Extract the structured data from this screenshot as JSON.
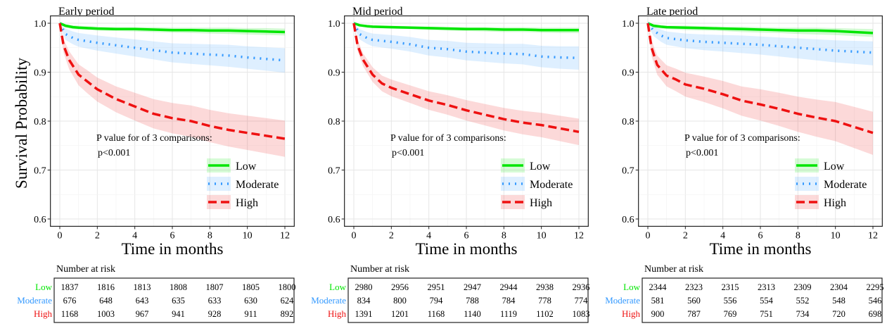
{
  "figure": {
    "ylabel": "Survival Probability",
    "xlabel": "Time in months",
    "risk_title": "Number at risk",
    "annotation_line1": "P value for of 3 comparisons:",
    "annotation_line2": "p<0.001"
  },
  "colors": {
    "Low": "#00e600",
    "Moderate": "#3399ff",
    "High": "#ee1111"
  },
  "chart_data": [
    {
      "type": "line",
      "title": "Early period",
      "xlabel": "Time in months",
      "ylabel": "Survival Probability",
      "xlim": [
        0,
        12
      ],
      "ylim": [
        0.6,
        1.0
      ],
      "xticks": [
        0,
        2,
        4,
        6,
        8,
        10,
        12
      ],
      "yticks": [
        0.6,
        0.7,
        0.8,
        0.9,
        1.0
      ],
      "legend": [
        "Low",
        "Moderate",
        "High"
      ],
      "annotation": [
        "P value for of 3 comparisons:",
        "p<0.001"
      ],
      "series": [
        {
          "name": "Low",
          "x": [
            0,
            0.3,
            0.7,
            1,
            2,
            3,
            4,
            5,
            6,
            7,
            8,
            9,
            10,
            11,
            12
          ],
          "y": [
            1.0,
            0.995,
            0.992,
            0.991,
            0.989,
            0.988,
            0.988,
            0.987,
            0.986,
            0.986,
            0.985,
            0.985,
            0.984,
            0.983,
            0.982
          ],
          "lower": [
            0.998,
            0.991,
            0.988,
            0.987,
            0.985,
            0.984,
            0.983,
            0.982,
            0.981,
            0.98,
            0.979,
            0.978,
            0.977,
            0.976,
            0.975
          ],
          "upper": [
            1.0,
            0.998,
            0.996,
            0.995,
            0.993,
            0.992,
            0.992,
            0.992,
            0.991,
            0.991,
            0.991,
            0.991,
            0.99,
            0.99,
            0.989
          ]
        },
        {
          "name": "Moderate",
          "x": [
            0,
            0.3,
            0.7,
            1,
            2,
            3,
            4,
            5,
            6,
            7,
            8,
            9,
            10,
            11,
            12
          ],
          "y": [
            1.0,
            0.978,
            0.97,
            0.966,
            0.96,
            0.955,
            0.95,
            0.945,
            0.94,
            0.938,
            0.936,
            0.934,
            0.93,
            0.927,
            0.924
          ],
          "lower": [
            0.995,
            0.966,
            0.957,
            0.952,
            0.944,
            0.938,
            0.932,
            0.926,
            0.92,
            0.917,
            0.914,
            0.911,
            0.907,
            0.903,
            0.899
          ],
          "upper": [
            1.0,
            0.989,
            0.983,
            0.98,
            0.975,
            0.971,
            0.967,
            0.963,
            0.959,
            0.958,
            0.957,
            0.956,
            0.953,
            0.951,
            0.949
          ]
        },
        {
          "name": "High",
          "x": [
            0,
            0.2,
            0.5,
            1,
            1.5,
            2,
            3,
            4,
            5,
            6,
            7,
            8,
            9,
            10,
            11,
            12
          ],
          "y": [
            1.0,
            0.955,
            0.925,
            0.895,
            0.88,
            0.865,
            0.845,
            0.83,
            0.815,
            0.806,
            0.8,
            0.79,
            0.782,
            0.776,
            0.77,
            0.764
          ],
          "lower": [
            0.995,
            0.94,
            0.906,
            0.873,
            0.856,
            0.84,
            0.818,
            0.801,
            0.785,
            0.775,
            0.768,
            0.757,
            0.748,
            0.741,
            0.734,
            0.727
          ],
          "upper": [
            1.0,
            0.968,
            0.943,
            0.916,
            0.903,
            0.889,
            0.871,
            0.858,
            0.845,
            0.837,
            0.832,
            0.823,
            0.816,
            0.811,
            0.806,
            0.801
          ]
        }
      ],
      "risk_table": {
        "times": [
          0,
          2,
          4,
          6,
          8,
          10,
          12
        ],
        "rows": [
          {
            "name": "Low",
            "values": [
              "1837",
              "1816",
              "1813",
              "1808",
              "1807",
              "1805",
              "1800"
            ]
          },
          {
            "name": "Moderate",
            "values": [
              "676",
              "648",
              "643",
              "635",
              "633",
              "630",
              "624"
            ]
          },
          {
            "name": "High",
            "values": [
              "1168",
              "1003",
              "967",
              "941",
              "928",
              "911",
              "892"
            ]
          }
        ]
      }
    },
    {
      "type": "line",
      "title": "Mid period",
      "xlabel": "Time in months",
      "ylabel": "Survival Probability",
      "xlim": [
        0,
        12
      ],
      "ylim": [
        0.6,
        1.0
      ],
      "xticks": [
        0,
        2,
        4,
        6,
        8,
        10,
        12
      ],
      "yticks": [
        0.6,
        0.7,
        0.8,
        0.9,
        1.0
      ],
      "legend": [
        "Low",
        "Moderate",
        "High"
      ],
      "annotation": [
        "P value for of 3 comparisons:",
        "p<0.001"
      ],
      "series": [
        {
          "name": "Low",
          "x": [
            0,
            0.3,
            0.7,
            1,
            2,
            3,
            4,
            5,
            6,
            7,
            8,
            9,
            10,
            11,
            12
          ],
          "y": [
            1.0,
            0.996,
            0.994,
            0.993,
            0.992,
            0.991,
            0.99,
            0.989,
            0.988,
            0.988,
            0.987,
            0.987,
            0.986,
            0.986,
            0.986
          ],
          "lower": [
            0.998,
            0.993,
            0.991,
            0.99,
            0.989,
            0.988,
            0.986,
            0.985,
            0.984,
            0.983,
            0.982,
            0.982,
            0.981,
            0.98,
            0.98
          ],
          "upper": [
            1.0,
            0.998,
            0.997,
            0.996,
            0.995,
            0.994,
            0.993,
            0.993,
            0.992,
            0.992,
            0.992,
            0.992,
            0.991,
            0.991,
            0.991
          ]
        },
        {
          "name": "Moderate",
          "x": [
            0,
            0.3,
            0.7,
            1,
            2,
            3,
            4,
            5,
            6,
            7,
            8,
            9,
            10,
            11,
            12
          ],
          "y": [
            1.0,
            0.978,
            0.97,
            0.966,
            0.962,
            0.957,
            0.95,
            0.947,
            0.942,
            0.94,
            0.938,
            0.937,
            0.932,
            0.93,
            0.929
          ],
          "lower": [
            0.995,
            0.967,
            0.958,
            0.953,
            0.948,
            0.942,
            0.934,
            0.93,
            0.924,
            0.921,
            0.918,
            0.916,
            0.91,
            0.907,
            0.905
          ],
          "upper": [
            1.0,
            0.988,
            0.982,
            0.979,
            0.976,
            0.972,
            0.966,
            0.964,
            0.96,
            0.959,
            0.958,
            0.958,
            0.954,
            0.953,
            0.953
          ]
        },
        {
          "name": "High",
          "x": [
            0,
            0.2,
            0.5,
            1,
            1.5,
            2,
            3,
            4,
            5,
            6,
            7,
            8,
            9,
            10,
            11,
            12
          ],
          "y": [
            1.0,
            0.955,
            0.925,
            0.895,
            0.877,
            0.868,
            0.855,
            0.842,
            0.833,
            0.822,
            0.813,
            0.804,
            0.797,
            0.792,
            0.785,
            0.778
          ],
          "lower": [
            0.996,
            0.944,
            0.912,
            0.88,
            0.861,
            0.851,
            0.837,
            0.823,
            0.813,
            0.801,
            0.791,
            0.781,
            0.773,
            0.767,
            0.759,
            0.751
          ],
          "upper": [
            1.0,
            0.966,
            0.938,
            0.91,
            0.893,
            0.885,
            0.873,
            0.861,
            0.853,
            0.843,
            0.835,
            0.827,
            0.821,
            0.817,
            0.811,
            0.805
          ]
        }
      ],
      "risk_table": {
        "times": [
          0,
          2,
          4,
          6,
          8,
          10,
          12
        ],
        "rows": [
          {
            "name": "Low",
            "values": [
              "2980",
              "2956",
              "2951",
              "2947",
              "2944",
              "2938",
              "2936"
            ]
          },
          {
            "name": "Moderate",
            "values": [
              "834",
              "800",
              "794",
              "788",
              "784",
              "778",
              "774"
            ]
          },
          {
            "name": "High",
            "values": [
              "1391",
              "1201",
              "1168",
              "1140",
              "1119",
              "1102",
              "1083"
            ]
          }
        ]
      }
    },
    {
      "type": "line",
      "title": "Late period",
      "xlabel": "Time in months",
      "ylabel": "Survival Probability",
      "xlim": [
        0,
        12
      ],
      "ylim": [
        0.6,
        1.0
      ],
      "xticks": [
        0,
        2,
        4,
        6,
        8,
        10,
        12
      ],
      "yticks": [
        0.6,
        0.7,
        0.8,
        0.9,
        1.0
      ],
      "legend": [
        "Low",
        "Moderate",
        "High"
      ],
      "annotation": [
        "P value for of 3 comparisons:",
        "p<0.001"
      ],
      "series": [
        {
          "name": "Low",
          "x": [
            0,
            0.3,
            0.7,
            1,
            2,
            3,
            4,
            5,
            6,
            7,
            8,
            9,
            10,
            11,
            12
          ],
          "y": [
            1.0,
            0.995,
            0.993,
            0.992,
            0.991,
            0.99,
            0.989,
            0.988,
            0.987,
            0.986,
            0.985,
            0.985,
            0.984,
            0.982,
            0.98
          ],
          "lower": [
            0.998,
            0.991,
            0.989,
            0.988,
            0.986,
            0.985,
            0.984,
            0.982,
            0.981,
            0.98,
            0.978,
            0.977,
            0.976,
            0.974,
            0.972
          ],
          "upper": [
            1.0,
            0.998,
            0.996,
            0.995,
            0.995,
            0.994,
            0.993,
            0.993,
            0.992,
            0.991,
            0.991,
            0.991,
            0.99,
            0.989,
            0.988
          ]
        },
        {
          "name": "Moderate",
          "x": [
            0,
            0.3,
            0.7,
            1,
            2,
            3,
            4,
            5,
            6,
            7,
            8,
            9,
            10,
            11,
            12
          ],
          "y": [
            1.0,
            0.985,
            0.975,
            0.97,
            0.965,
            0.962,
            0.96,
            0.958,
            0.956,
            0.953,
            0.95,
            0.947,
            0.944,
            0.942,
            0.94
          ],
          "lower": [
            0.996,
            0.974,
            0.962,
            0.956,
            0.949,
            0.945,
            0.942,
            0.939,
            0.936,
            0.932,
            0.928,
            0.924,
            0.92,
            0.917,
            0.914
          ],
          "upper": [
            1.0,
            0.994,
            0.987,
            0.983,
            0.979,
            0.977,
            0.976,
            0.975,
            0.973,
            0.971,
            0.969,
            0.967,
            0.965,
            0.964,
            0.963
          ]
        },
        {
          "name": "High",
          "x": [
            0,
            0.2,
            0.5,
            1,
            1.5,
            2,
            3,
            4,
            5,
            6,
            7,
            8,
            9,
            10,
            11,
            12
          ],
          "y": [
            1.0,
            0.95,
            0.915,
            0.893,
            0.885,
            0.875,
            0.866,
            0.855,
            0.842,
            0.834,
            0.825,
            0.815,
            0.807,
            0.8,
            0.788,
            0.776
          ],
          "lower": [
            0.995,
            0.933,
            0.895,
            0.871,
            0.861,
            0.85,
            0.839,
            0.826,
            0.811,
            0.801,
            0.79,
            0.778,
            0.768,
            0.759,
            0.745,
            0.731
          ],
          "upper": [
            1.0,
            0.965,
            0.934,
            0.914,
            0.907,
            0.899,
            0.891,
            0.882,
            0.871,
            0.865,
            0.858,
            0.85,
            0.844,
            0.839,
            0.829,
            0.819
          ]
        }
      ],
      "risk_table": {
        "times": [
          0,
          2,
          4,
          6,
          8,
          10,
          12
        ],
        "rows": [
          {
            "name": "Low",
            "values": [
              "2344",
              "2323",
              "2315",
              "2313",
              "2309",
              "2304",
              "2295"
            ]
          },
          {
            "name": "Moderate",
            "values": [
              "581",
              "560",
              "556",
              "554",
              "552",
              "548",
              "546"
            ]
          },
          {
            "name": "High",
            "values": [
              "900",
              "787",
              "769",
              "751",
              "734",
              "720",
              "698"
            ]
          }
        ]
      }
    }
  ]
}
